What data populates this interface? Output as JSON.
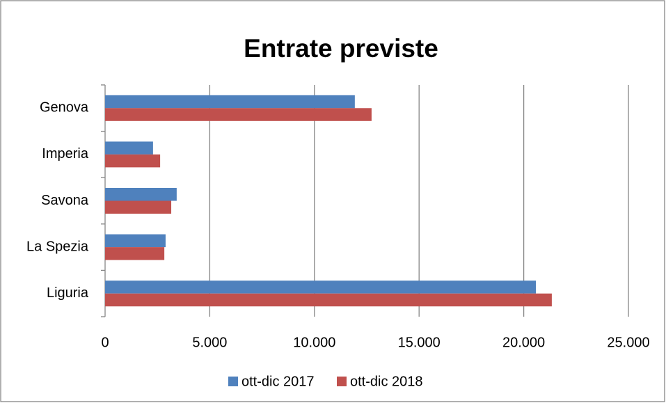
{
  "chart_data": {
    "type": "hbar",
    "title": "Entrate previste",
    "categories": [
      "Genova",
      "Imperia",
      "Savona",
      "La Spezia",
      "Liguria"
    ],
    "series": [
      {
        "name": "ott-dic 2017",
        "color": "#4f81bd",
        "values": [
          11930,
          2290,
          3420,
          2890,
          20580
        ]
      },
      {
        "name": "ott-dic 2018",
        "color": "#c0504d",
        "values": [
          12730,
          2630,
          3160,
          2830,
          21340
        ]
      }
    ],
    "xlim": [
      0,
      25000
    ],
    "xticks": [
      0,
      {
        "value": 5000,
        "label": "5.000"
      },
      {
        "value": 10000,
        "label": "10.000"
      },
      {
        "value": 15000,
        "label": "15.000"
      },
      {
        "value": 20000,
        "label": "20.000"
      },
      {
        "value": 25000,
        "label": "25.000"
      }
    ],
    "grid": true,
    "legend": "bottom"
  }
}
